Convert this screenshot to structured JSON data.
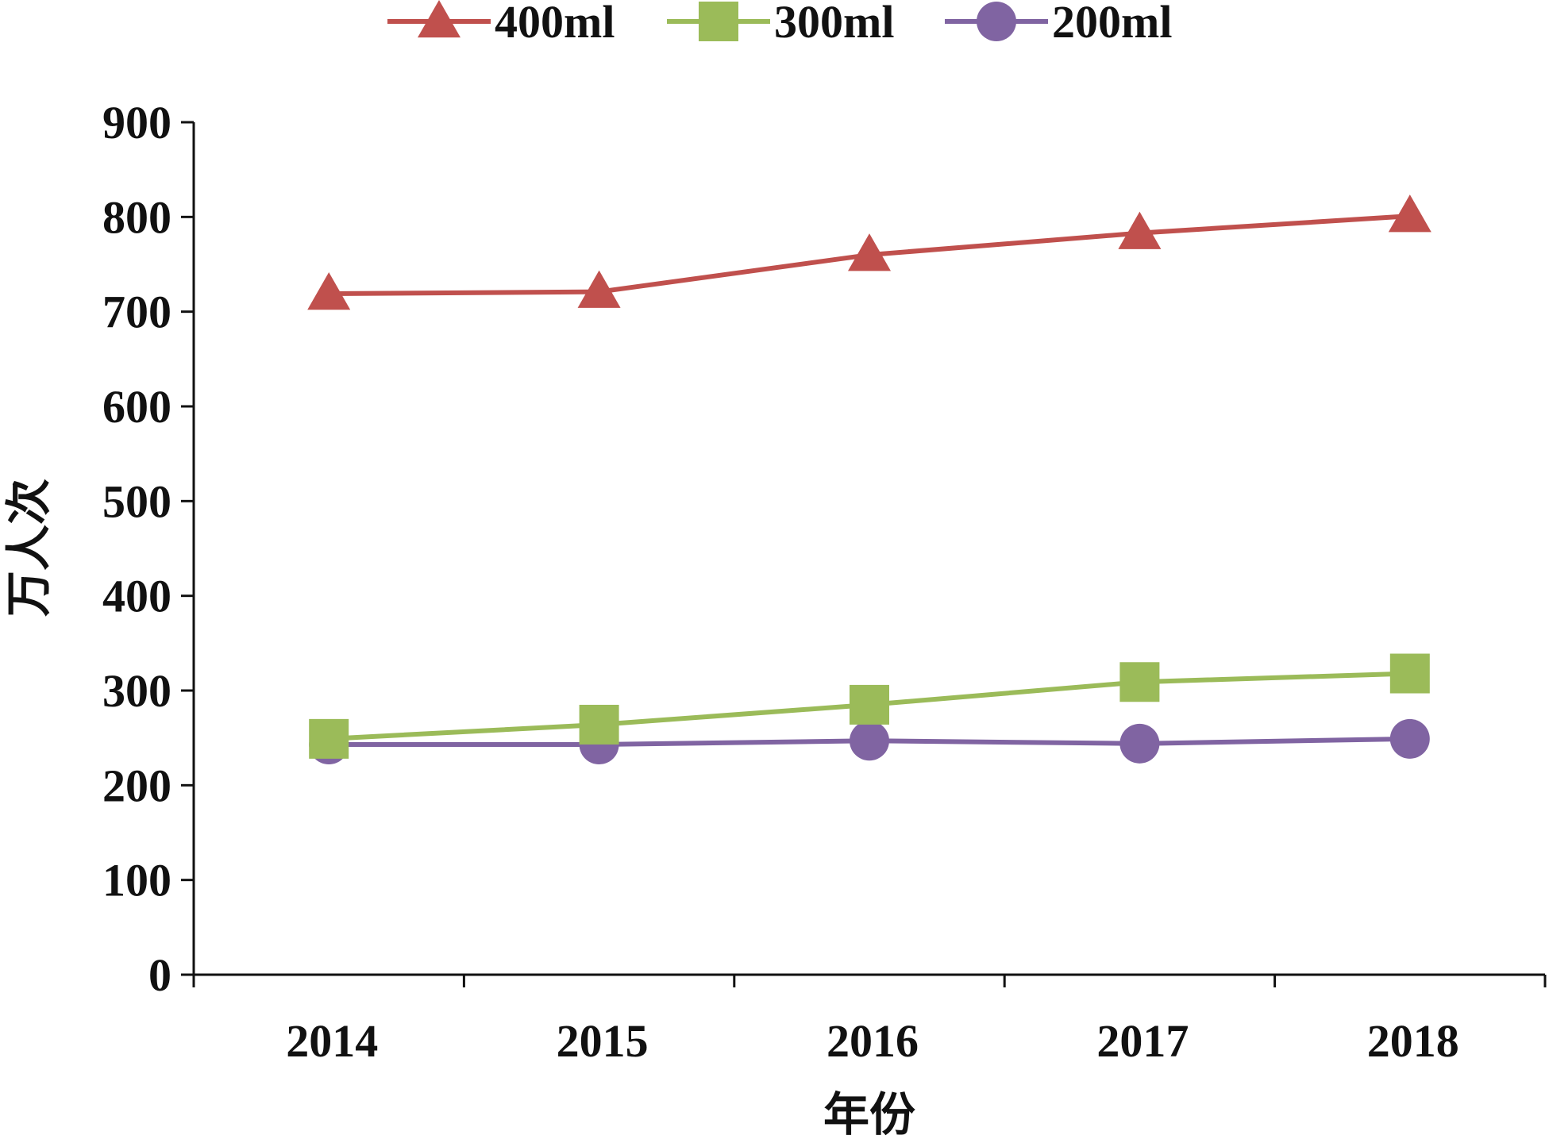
{
  "chart_data": {
    "type": "line",
    "title": "",
    "xlabel": "年份",
    "ylabel": "万人次",
    "categories": [
      "2014",
      "2015",
      "2016",
      "2017",
      "2018"
    ],
    "ylim": [
      0,
      900
    ],
    "yticks": [
      0,
      100,
      200,
      300,
      400,
      500,
      600,
      700,
      800,
      900
    ],
    "grid": false,
    "legend_position": "top",
    "series": [
      {
        "name": "400ml",
        "marker": "triangle",
        "color": "#C0504D",
        "values": [
          719,
          721,
          760,
          783,
          801
        ]
      },
      {
        "name": "300ml",
        "marker": "square",
        "color": "#9BBB59",
        "values": [
          249,
          264,
          285,
          309,
          318
        ]
      },
      {
        "name": "200ml",
        "marker": "circle",
        "color": "#8064A2",
        "values": [
          243,
          243,
          247,
          244,
          249
        ]
      }
    ]
  }
}
